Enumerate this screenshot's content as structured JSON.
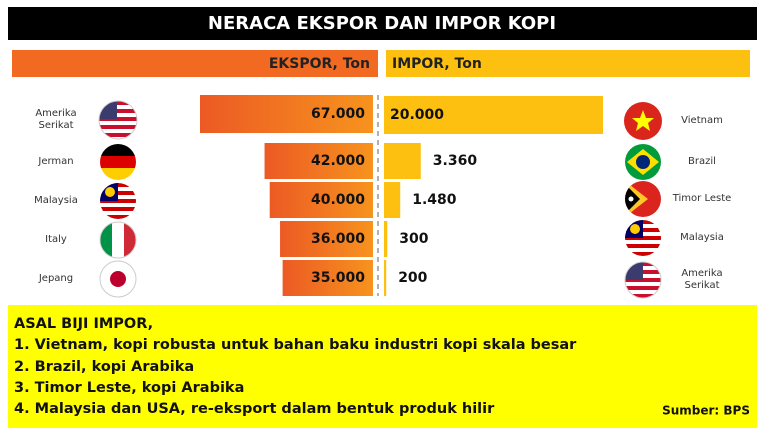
{
  "chart_data": {
    "type": "butterfly",
    "title": "NERACA EKSPOR DAN IMPOR KOPI",
    "series": [
      {
        "name": "EKSPOR, Ton",
        "color": "#f26a21",
        "categories": [
          "Amerika Serikat",
          "Jerman",
          "Malaysia",
          "Italy",
          "Jepang"
        ],
        "values": [
          67000,
          42000,
          40000,
          36000,
          35000
        ],
        "value_labels": [
          "67.000",
          "42.000",
          "40.000",
          "36.000",
          "35.000"
        ]
      },
      {
        "name": "IMPOR, Ton",
        "color": "#fdc010",
        "categories": [
          "Vietnam",
          "Brazil",
          "Timor Leste",
          "Malaysia",
          "Amerika Serikat"
        ],
        "values": [
          20000,
          3360,
          1480,
          300,
          200
        ],
        "value_labels": [
          "20.000",
          "3.360",
          "1.480",
          "300",
          "200"
        ]
      }
    ],
    "notes": {
      "title": "ASAL BIJI IMPOR,",
      "items": [
        "1.  Vietnam, kopi robusta untuk bahan baku industri kopi skala besar",
        "2.  Brazil, kopi Arabika",
        "3.  Timor Leste, kopi Arabika",
        "4.  Malaysia dan USA, re-eksport dalam bentuk produk hilir"
      ]
    },
    "source": "Sumber: BPS"
  }
}
